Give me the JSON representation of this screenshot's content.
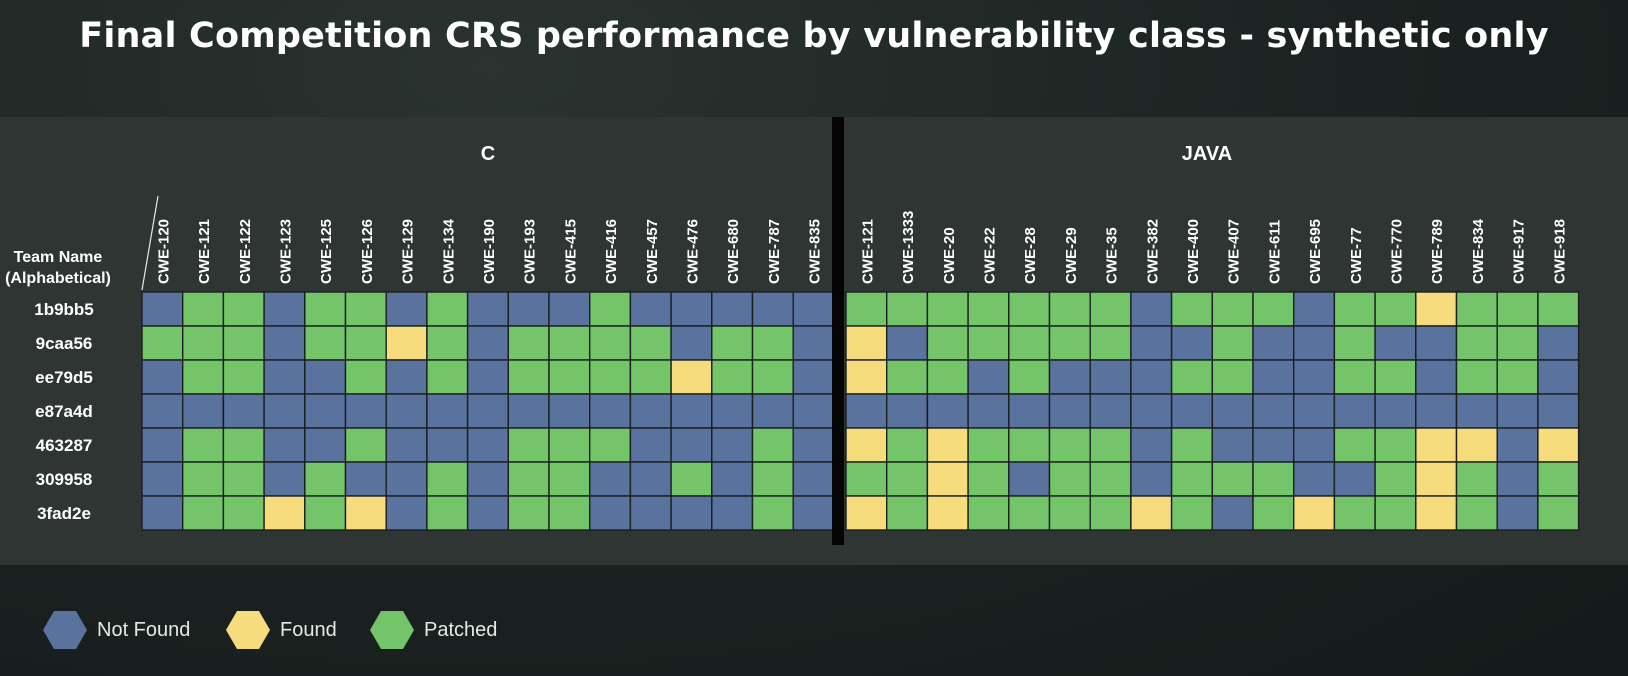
{
  "title": "Final Competition CRS performance by vulnerability class - synthetic only",
  "colors": {
    "not_found": "#59729e",
    "found": "#f6dc7c",
    "patched": "#74c56a"
  },
  "legend": [
    {
      "key": "N",
      "label": "Not Found"
    },
    {
      "key": "F",
      "label": "Found"
    },
    {
      "key": "P",
      "label": "Patched"
    }
  ],
  "chart_data": {
    "type": "heatmap",
    "title": "Final Competition CRS performance by vulnerability class - synthetic only",
    "row_header": "Team Name\n(Alphabetical)",
    "rows": [
      "1b9bb5",
      "9caa56",
      "ee79d5",
      "e87a4d",
      "463287",
      "309958",
      "3fad2e"
    ],
    "value_legend": {
      "N": "Not Found",
      "F": "Found",
      "P": "Patched"
    },
    "groups": [
      {
        "name": "C",
        "columns": [
          "CWE-120",
          "CWE-121",
          "CWE-122",
          "CWE-123",
          "CWE-125",
          "CWE-126",
          "CWE-129",
          "CWE-134",
          "CWE-190",
          "CWE-193",
          "CWE-415",
          "CWE-416",
          "CWE-457",
          "CWE-476",
          "CWE-680",
          "CWE-787",
          "CWE-835"
        ],
        "values": [
          [
            "N",
            "P",
            "P",
            "N",
            "P",
            "P",
            "N",
            "P",
            "N",
            "N",
            "N",
            "P",
            "N",
            "N",
            "N",
            "N",
            "N"
          ],
          [
            "P",
            "P",
            "P",
            "N",
            "P",
            "P",
            "F",
            "P",
            "N",
            "P",
            "P",
            "P",
            "P",
            "N",
            "P",
            "P",
            "N"
          ],
          [
            "N",
            "P",
            "P",
            "N",
            "N",
            "P",
            "N",
            "P",
            "N",
            "P",
            "P",
            "P",
            "P",
            "F",
            "P",
            "P",
            "N"
          ],
          [
            "N",
            "N",
            "N",
            "N",
            "N",
            "N",
            "N",
            "N",
            "N",
            "N",
            "N",
            "N",
            "N",
            "N",
            "N",
            "N",
            "N"
          ],
          [
            "N",
            "P",
            "P",
            "N",
            "N",
            "P",
            "N",
            "N",
            "N",
            "P",
            "P",
            "P",
            "N",
            "N",
            "N",
            "P",
            "N"
          ],
          [
            "N",
            "P",
            "P",
            "N",
            "P",
            "N",
            "N",
            "P",
            "N",
            "P",
            "P",
            "N",
            "N",
            "P",
            "N",
            "P",
            "N"
          ],
          [
            "N",
            "P",
            "P",
            "F",
            "P",
            "F",
            "N",
            "P",
            "N",
            "P",
            "P",
            "N",
            "N",
            "N",
            "N",
            "P",
            "N"
          ]
        ]
      },
      {
        "name": "JAVA",
        "columns": [
          "CWE-121",
          "CWE-1333",
          "CWE-20",
          "CWE-22",
          "CWE-28",
          "CWE-29",
          "CWE-35",
          "CWE-382",
          "CWE-400",
          "CWE-407",
          "CWE-611",
          "CWE-695",
          "CWE-77",
          "CWE-770",
          "CWE-789",
          "CWE-834",
          "CWE-917",
          "CWE-918"
        ],
        "values": [
          [
            "P",
            "P",
            "P",
            "P",
            "P",
            "P",
            "P",
            "N",
            "P",
            "P",
            "P",
            "N",
            "P",
            "P",
            "F",
            "P",
            "P",
            "P"
          ],
          [
            "F",
            "N",
            "P",
            "P",
            "P",
            "P",
            "P",
            "N",
            "N",
            "P",
            "N",
            "N",
            "P",
            "N",
            "N",
            "P",
            "P",
            "N"
          ],
          [
            "F",
            "P",
            "P",
            "N",
            "P",
            "N",
            "N",
            "N",
            "P",
            "P",
            "N",
            "N",
            "P",
            "P",
            "N",
            "P",
            "P",
            "N"
          ],
          [
            "N",
            "N",
            "N",
            "N",
            "N",
            "N",
            "N",
            "N",
            "N",
            "N",
            "N",
            "N",
            "N",
            "N",
            "N",
            "N",
            "N",
            "N"
          ],
          [
            "F",
            "P",
            "F",
            "P",
            "P",
            "P",
            "P",
            "N",
            "P",
            "N",
            "N",
            "N",
            "P",
            "P",
            "F",
            "F",
            "N",
            "F"
          ],
          [
            "P",
            "P",
            "F",
            "P",
            "N",
            "P",
            "P",
            "N",
            "P",
            "P",
            "P",
            "N",
            "N",
            "P",
            "F",
            "P",
            "N",
            "P"
          ],
          [
            "F",
            "P",
            "F",
            "P",
            "P",
            "P",
            "P",
            "F",
            "P",
            "N",
            "P",
            "F",
            "P",
            "P",
            "F",
            "P",
            "N",
            "P"
          ]
        ]
      }
    ]
  }
}
